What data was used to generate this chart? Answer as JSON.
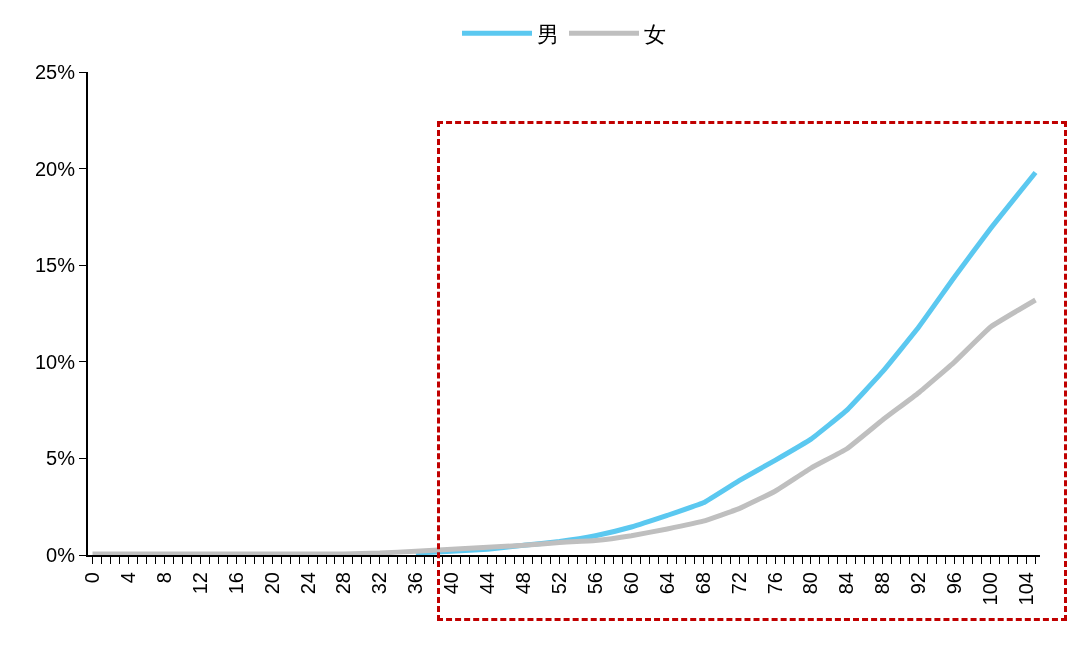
{
  "chart_data": {
    "type": "line",
    "x": [
      0,
      4,
      8,
      12,
      16,
      20,
      24,
      28,
      32,
      36,
      40,
      44,
      48,
      52,
      56,
      60,
      64,
      68,
      72,
      76,
      80,
      84,
      88,
      92,
      96,
      100,
      105
    ],
    "series": [
      {
        "name": "男",
        "color": "#5bc8f0",
        "values": [
          null,
          null,
          null,
          null,
          null,
          null,
          null,
          null,
          null,
          0.1,
          0.2,
          0.3,
          0.5,
          0.7,
          1.0,
          1.45,
          2.05,
          2.7,
          3.85,
          4.9,
          6.0,
          7.5,
          9.5,
          11.8,
          14.4,
          16.9,
          19.8
        ]
      },
      {
        "name": "女",
        "color": "#bfbfbf",
        "values": [
          0.05,
          0.05,
          0.05,
          0.05,
          0.05,
          0.05,
          0.05,
          0.05,
          0.1,
          0.2,
          0.3,
          0.4,
          0.5,
          0.65,
          0.75,
          1.0,
          1.35,
          1.75,
          2.4,
          3.3,
          4.5,
          5.5,
          7.0,
          8.4,
          10.0,
          11.8,
          13.2
        ]
      }
    ],
    "xlim": [
      -0.5,
      105.5
    ],
    "xticks": [
      0,
      4,
      8,
      12,
      16,
      20,
      24,
      28,
      32,
      36,
      40,
      44,
      48,
      52,
      56,
      60,
      64,
      68,
      72,
      76,
      80,
      84,
      88,
      92,
      96,
      100,
      104
    ],
    "ylim": [
      0,
      25
    ],
    "yticks": [
      {
        "value": 0,
        "label": "0%"
      },
      {
        "value": 5,
        "label": "5%"
      },
      {
        "value": 10,
        "label": "10%"
      },
      {
        "value": 15,
        "label": "15%"
      },
      {
        "value": 20,
        "label": "20%"
      },
      {
        "value": 25,
        "label": "25%"
      }
    ],
    "legend": "top",
    "line_style": "solid"
  }
}
